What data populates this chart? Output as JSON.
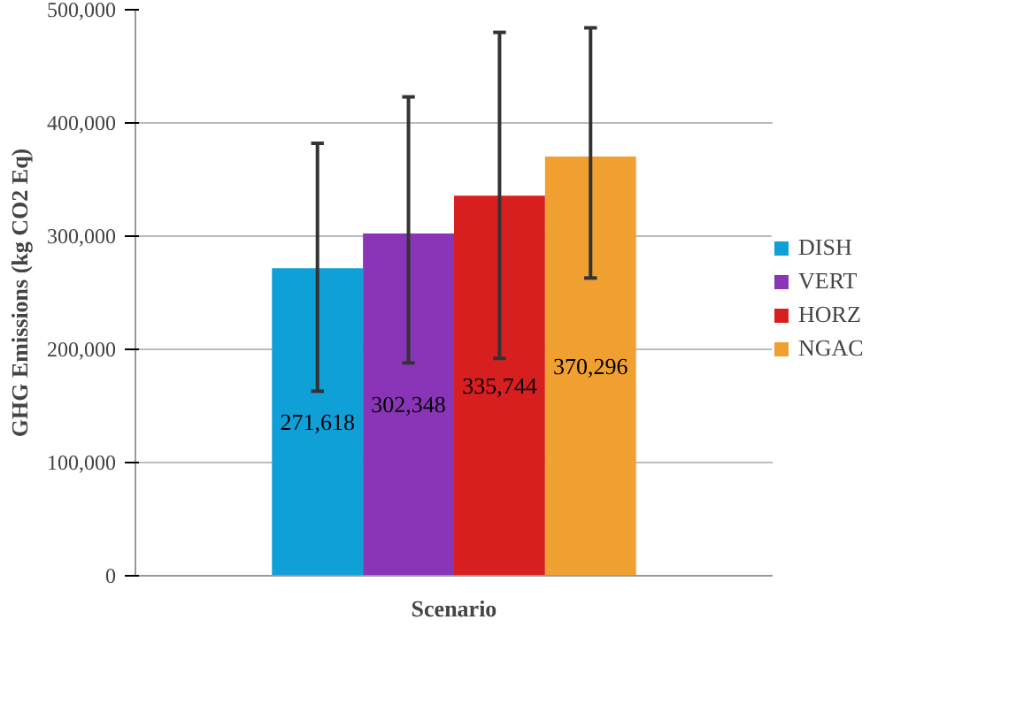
{
  "chart_data": {
    "type": "bar",
    "xlabel": "Scenario",
    "ylabel": "GHG Emissions (kg CO2 Eq)",
    "categories": [
      null
    ],
    "series": [
      {
        "name": "DISH",
        "color": "#0fa0d8",
        "values": [
          271618
        ],
        "value_labels": [
          "271,618"
        ],
        "errors": [
          [
            163000,
            382000
          ]
        ]
      },
      {
        "name": "VERT",
        "color": "#8a35b8",
        "values": [
          302348
        ],
        "value_labels": [
          "302,348"
        ],
        "errors": [
          [
            188000,
            423000
          ]
        ]
      },
      {
        "name": "HORZ",
        "color": "#d81f1f",
        "values": [
          335744
        ],
        "value_labels": [
          "335,744"
        ],
        "errors": [
          [
            192000,
            480000
          ]
        ]
      },
      {
        "name": "NGAC",
        "color": "#f0a030",
        "values": [
          370296
        ],
        "value_labels": [
          "370,296"
        ],
        "errors": [
          [
            263000,
            484000
          ]
        ]
      }
    ],
    "ylim": [
      0,
      500000
    ],
    "yticks": [
      {
        "value": 0,
        "label": "0"
      },
      {
        "value": 100000,
        "label": "100,000"
      },
      {
        "value": 200000,
        "label": "200,000"
      },
      {
        "value": 300000,
        "label": "300,000"
      },
      {
        "value": 400000,
        "label": "400,000"
      },
      {
        "value": 500000,
        "label": "500,000"
      }
    ],
    "grid": "y",
    "legend": "right"
  }
}
